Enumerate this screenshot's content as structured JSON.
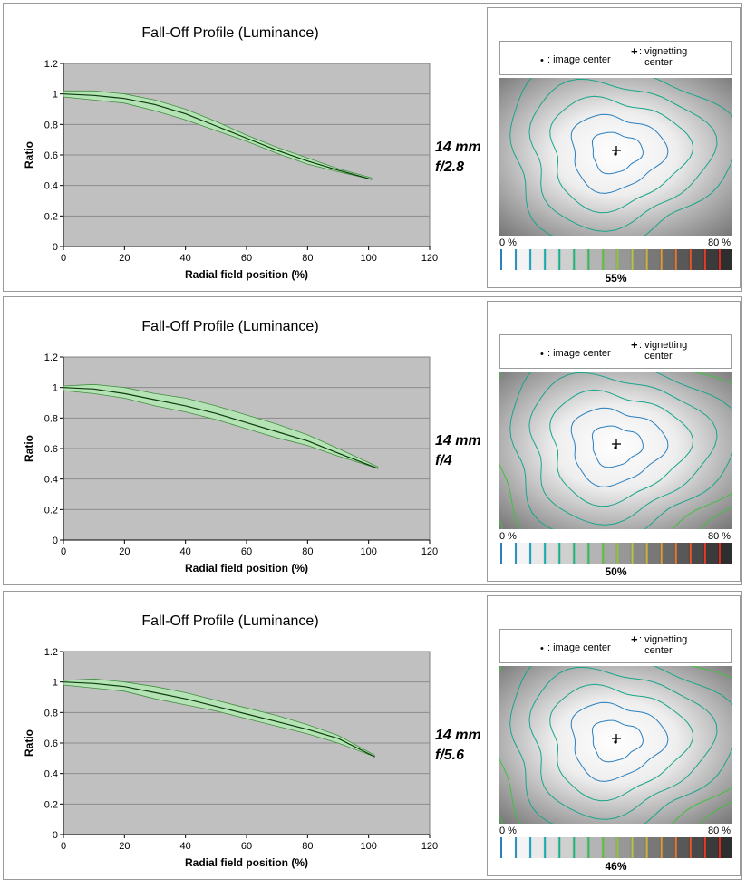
{
  "panels": [
    {
      "chart_title": "Fall-Off Profile (Luminance)",
      "lens_focal": "14 mm",
      "lens_aperture": "f/2.8",
      "vignetting_percent": "55%"
    },
    {
      "chart_title": "Fall-Off Profile (Luminance)",
      "lens_focal": "14 mm",
      "lens_aperture": "f/4",
      "vignetting_percent": "50%"
    },
    {
      "chart_title": "Fall-Off Profile (Luminance)",
      "lens_focal": "14 mm",
      "lens_aperture": "f/5.6",
      "vignetting_percent": "46%"
    }
  ],
  "legend": {
    "dot_symbol": "•",
    "image_center": ": image center",
    "plus_symbol": "+",
    "vignetting_line1": ": vignetting",
    "vignetting_line2": "center"
  },
  "scale": {
    "min_label": "0 %",
    "max_label": "80 %"
  },
  "colors": {
    "plot_bg": "#c0c0c0",
    "band_fill": "#b5e3b5",
    "band_edge": "#3f8f3f",
    "mean_line": "#0b3d0b",
    "contour_blue": "#2a7fbf",
    "contour_teal": "#18a58a",
    "contour_green": "#3fc13f"
  },
  "chart_data": [
    {
      "type": "line",
      "title": "Fall-Off Profile (Luminance)",
      "xlabel": "Radial field position (%)",
      "ylabel": "Ratio",
      "xlim": [
        0,
        120
      ],
      "ylim": [
        0,
        1.2
      ],
      "x_ticks": [
        0,
        20,
        40,
        60,
        80,
        100,
        120
      ],
      "y_ticks": [
        0,
        0.2,
        0.4,
        0.6,
        0.8,
        1,
        1.2
      ],
      "y_tick_labels": [
        "0",
        "0.2",
        "0.4",
        "0.6",
        "0.8",
        "1",
        "1.2"
      ],
      "grid": "horizontal",
      "x": [
        0,
        10,
        20,
        30,
        40,
        50,
        60,
        70,
        80,
        90,
        101
      ],
      "series": [
        {
          "values": [
            1.0,
            0.99,
            0.97,
            0.93,
            0.87,
            0.79,
            0.71,
            0.63,
            0.56,
            0.5,
            0.44
          ]
        },
        {
          "values": [
            1.02,
            1.02,
            1.0,
            0.96,
            0.9,
            0.82,
            0.73,
            0.65,
            0.58,
            0.51,
            0.45
          ]
        },
        {
          "values": [
            0.98,
            0.96,
            0.94,
            0.89,
            0.83,
            0.76,
            0.69,
            0.61,
            0.54,
            0.49,
            0.44
          ]
        }
      ]
    },
    {
      "type": "line",
      "title": "Fall-Off Profile (Luminance)",
      "xlabel": "Radial field position (%)",
      "ylabel": "Ratio",
      "xlim": [
        0,
        120
      ],
      "ylim": [
        0,
        1.2
      ],
      "x_ticks": [
        0,
        20,
        40,
        60,
        80,
        100,
        120
      ],
      "y_ticks": [
        0,
        0.2,
        0.4,
        0.6,
        0.8,
        1,
        1.2
      ],
      "y_tick_labels": [
        "0",
        "0.2",
        "0.4",
        "0.6",
        "0.8",
        "1",
        "1.2"
      ],
      "grid": "horizontal",
      "x": [
        0,
        10,
        20,
        30,
        40,
        50,
        60,
        70,
        80,
        90,
        103
      ],
      "series": [
        {
          "values": [
            1.0,
            0.99,
            0.96,
            0.92,
            0.88,
            0.83,
            0.77,
            0.71,
            0.65,
            0.57,
            0.47
          ]
        },
        {
          "values": [
            1.01,
            1.02,
            1.0,
            0.96,
            0.93,
            0.88,
            0.82,
            0.76,
            0.69,
            0.6,
            0.48
          ]
        },
        {
          "values": [
            0.98,
            0.96,
            0.93,
            0.88,
            0.84,
            0.79,
            0.73,
            0.67,
            0.62,
            0.55,
            0.47
          ]
        }
      ]
    },
    {
      "type": "line",
      "title": "Fall-Off Profile (Luminance)",
      "xlabel": "Radial field position (%)",
      "ylabel": "Ratio",
      "xlim": [
        0,
        120
      ],
      "ylim": [
        0,
        1.2
      ],
      "x_ticks": [
        0,
        20,
        40,
        60,
        80,
        100,
        120
      ],
      "y_ticks": [
        0,
        0.2,
        0.4,
        0.6,
        0.8,
        1,
        1.2
      ],
      "y_tick_labels": [
        "0",
        "0.2",
        "0.4",
        "0.6",
        "0.8",
        "1",
        "1.2"
      ],
      "grid": "horizontal",
      "x": [
        0,
        10,
        20,
        30,
        40,
        50,
        60,
        70,
        80,
        90,
        102
      ],
      "series": [
        {
          "values": [
            1.0,
            0.99,
            0.97,
            0.93,
            0.89,
            0.84,
            0.79,
            0.74,
            0.69,
            0.63,
            0.51
          ]
        },
        {
          "values": [
            1.01,
            1.02,
            1.0,
            0.97,
            0.93,
            0.88,
            0.83,
            0.78,
            0.72,
            0.65,
            0.52
          ]
        },
        {
          "values": [
            0.98,
            0.96,
            0.94,
            0.89,
            0.85,
            0.81,
            0.76,
            0.71,
            0.66,
            0.6,
            0.51
          ]
        }
      ]
    }
  ]
}
